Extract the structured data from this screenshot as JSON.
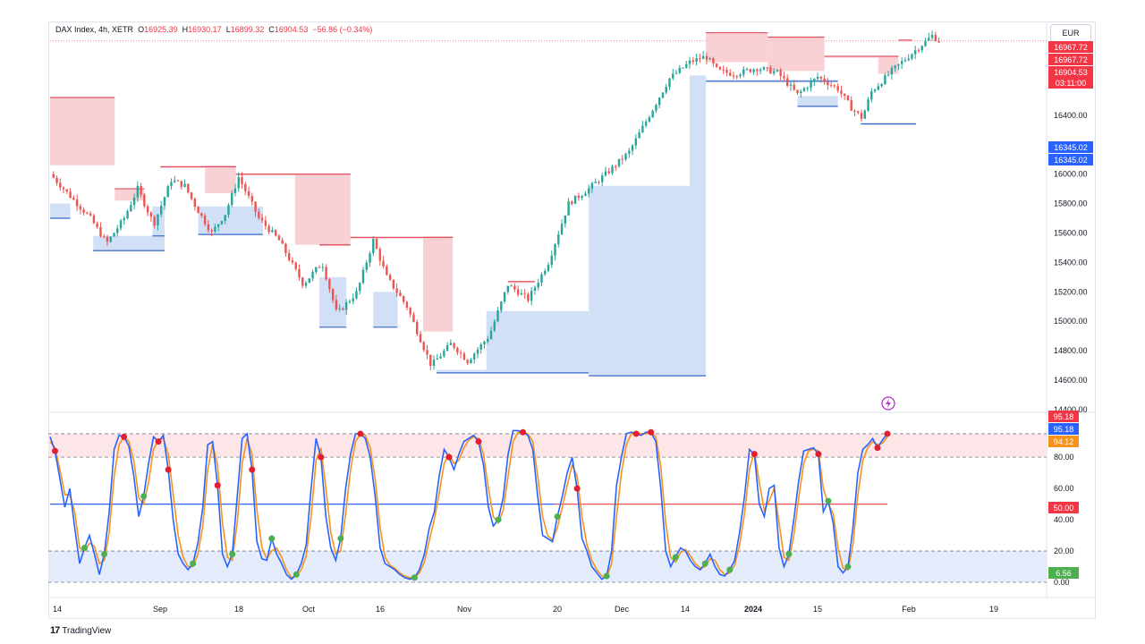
{
  "header": {
    "symbol": "DAX Index, 4h, XETR",
    "o_label": "O",
    "o_value": "16925.39",
    "h_label": "H",
    "h_value": "16930.17",
    "l_label": "L",
    "l_value": "16899.32",
    "c_label": "C",
    "c_value": "16904.53",
    "change": "−56.86 (−0.34%)"
  },
  "currency": "EUR",
  "footer": {
    "brand": "TradingView"
  },
  "colors": {
    "up": "#26a69a",
    "down": "#ef5350",
    "supply": "#f8c8cc",
    "demand": "#c9d9f6",
    "k_line": "#2962ff",
    "d_line": "#f7931a",
    "mid_line": "#2962ff",
    "mid_line_right": "#ef5350"
  },
  "chart_data": [
    {
      "type": "candlestick",
      "title": "DAX Index, 4h, XETR",
      "ylim": [
        14400,
        17000
      ],
      "y_ticks": [
        "16600.00",
        "16400.00",
        "16200.00",
        "16000.00",
        "15800.00",
        "15600.00",
        "15400.00",
        "15200.00",
        "15000.00",
        "14800.00",
        "14600.00",
        "14400.00"
      ],
      "x_ticks": [
        "14",
        "Sep",
        "18",
        "Oct",
        "16",
        "Nov",
        "20",
        "Dec",
        "14",
        "2024",
        "15",
        "Feb",
        "19"
      ],
      "price_labels": [
        {
          "value": "16967.72",
          "kind": "high"
        },
        {
          "value": "16967.72",
          "kind": "high"
        },
        {
          "value": "16904.53",
          "kind": "last"
        },
        {
          "value": "03:11:00",
          "kind": "countdown"
        },
        {
          "value": "16345.02",
          "kind": "support"
        },
        {
          "value": "16345.02",
          "kind": "support"
        }
      ],
      "close_path": [
        {
          "t": 0.0,
          "p": 16000
        },
        {
          "t": 1.5,
          "p": 15850
        },
        {
          "t": 3.0,
          "p": 15700
        },
        {
          "t": 4.2,
          "p": 15530
        },
        {
          "t": 5.5,
          "p": 15700
        },
        {
          "t": 6.5,
          "p": 15900
        },
        {
          "t": 7.7,
          "p": 15660
        },
        {
          "t": 9.0,
          "p": 15960
        },
        {
          "t": 10.0,
          "p": 15920
        },
        {
          "t": 10.8,
          "p": 15780
        },
        {
          "t": 12.0,
          "p": 15600
        },
        {
          "t": 13.0,
          "p": 15730
        },
        {
          "t": 14.0,
          "p": 15980
        },
        {
          "t": 15.5,
          "p": 15700
        },
        {
          "t": 17.0,
          "p": 15550
        },
        {
          "t": 18.8,
          "p": 15250
        },
        {
          "t": 20.2,
          "p": 15400
        },
        {
          "t": 21.3,
          "p": 15050
        },
        {
          "t": 22.8,
          "p": 15200
        },
        {
          "t": 24.0,
          "p": 15550
        },
        {
          "t": 25.0,
          "p": 15300
        },
        {
          "t": 26.5,
          "p": 15100
        },
        {
          "t": 28.3,
          "p": 14700
        },
        {
          "t": 29.8,
          "p": 14850
        },
        {
          "t": 31.0,
          "p": 14730
        },
        {
          "t": 32.6,
          "p": 14900
        },
        {
          "t": 34.0,
          "p": 15250
        },
        {
          "t": 35.5,
          "p": 15150
        },
        {
          "t": 37.0,
          "p": 15400
        },
        {
          "t": 38.5,
          "p": 15800
        },
        {
          "t": 40.0,
          "p": 15900
        },
        {
          "t": 41.5,
          "p": 16020
        },
        {
          "t": 43.0,
          "p": 16150
        },
        {
          "t": 44.5,
          "p": 16400
        },
        {
          "t": 46.0,
          "p": 16650
        },
        {
          "t": 47.5,
          "p": 16760
        },
        {
          "t": 48.7,
          "p": 16800
        },
        {
          "t": 49.6,
          "p": 16700
        },
        {
          "t": 50.8,
          "p": 16680
        },
        {
          "t": 52.5,
          "p": 16720
        },
        {
          "t": 54.0,
          "p": 16690
        },
        {
          "t": 55.5,
          "p": 16540
        },
        {
          "t": 57.0,
          "p": 16660
        },
        {
          "t": 58.5,
          "p": 16580
        },
        {
          "t": 59.5,
          "p": 16450
        },
        {
          "t": 60.3,
          "p": 16380
        },
        {
          "t": 61.0,
          "p": 16560
        },
        {
          "t": 62.5,
          "p": 16700
        },
        {
          "t": 64.0,
          "p": 16820
        },
        {
          "t": 65.5,
          "p": 16940
        },
        {
          "t": 66.0,
          "p": 16905
        }
      ],
      "supply_zones": [
        {
          "t1": 0.0,
          "t2": 4.8,
          "top": 16520,
          "bottom": 16060
        },
        {
          "t1": 4.8,
          "t2": 7.0,
          "top": 15900,
          "bottom": 15820
        },
        {
          "t1": 8.2,
          "t2": 13.8,
          "top": 16050,
          "bottom": 16040
        },
        {
          "t1": 11.5,
          "t2": 13.8,
          "top": 16050,
          "bottom": 15870
        },
        {
          "t1": 13.8,
          "t2": 22.3,
          "top": 16000,
          "bottom": 15990
        },
        {
          "t1": 18.2,
          "t2": 22.3,
          "top": 16000,
          "bottom": 15520
        },
        {
          "t1": 20.0,
          "t2": 22.3,
          "top": 15520,
          "bottom": 15510
        },
        {
          "t1": 22.3,
          "t2": 29.9,
          "top": 15570,
          "bottom": 15560
        },
        {
          "t1": 27.7,
          "t2": 29.9,
          "top": 15570,
          "bottom": 14930
        },
        {
          "t1": 34.0,
          "t2": 36.0,
          "top": 15270,
          "bottom": 15260
        },
        {
          "t1": 48.7,
          "t2": 53.3,
          "top": 16960,
          "bottom": 16760
        },
        {
          "t1": 53.3,
          "t2": 57.5,
          "top": 16930,
          "bottom": 16700
        },
        {
          "t1": 57.5,
          "t2": 63.0,
          "top": 16800,
          "bottom": 16790
        },
        {
          "t1": 61.5,
          "t2": 63.0,
          "top": 16800,
          "bottom": 16680
        },
        {
          "t1": 63.0,
          "t2": 64.0,
          "top": 16910,
          "bottom": 16900
        }
      ],
      "demand_zones": [
        {
          "t1": 0.0,
          "t2": 1.5,
          "top": 15800,
          "bottom": 15700
        },
        {
          "t1": 3.2,
          "t2": 8.5,
          "top": 15580,
          "bottom": 15480
        },
        {
          "t1": 7.6,
          "t2": 8.5,
          "top": 15780,
          "bottom": 15580
        },
        {
          "t1": 11.0,
          "t2": 15.8,
          "top": 15780,
          "bottom": 15590
        },
        {
          "t1": 20.0,
          "t2": 22.0,
          "top": 15300,
          "bottom": 14960
        },
        {
          "t1": 24.0,
          "t2": 25.8,
          "top": 15200,
          "bottom": 14960
        },
        {
          "t1": 28.7,
          "t2": 32.4,
          "top": 14670,
          "bottom": 14650
        },
        {
          "t1": 32.4,
          "t2": 40.0,
          "top": 15070,
          "bottom": 14650
        },
        {
          "t1": 40.0,
          "t2": 47.5,
          "top": 15920,
          "bottom": 14630
        },
        {
          "t1": 47.5,
          "t2": 48.7,
          "top": 16670,
          "bottom": 14630
        },
        {
          "t1": 48.7,
          "t2": 58.5,
          "top": 16640,
          "bottom": 16630
        },
        {
          "t1": 55.5,
          "t2": 58.5,
          "top": 16530,
          "bottom": 16460
        },
        {
          "t1": 60.2,
          "t2": 64.3,
          "top": 16350,
          "bottom": 16340
        }
      ]
    },
    {
      "type": "line",
      "title": "Stochastic",
      "ylim": [
        0,
        100
      ],
      "y_ticks": [
        "80.00",
        "60.00",
        "40.00",
        "20.00",
        "0.00"
      ],
      "overbought": 80,
      "oversold": 20,
      "midline": 50,
      "value_labels": [
        {
          "value": "95.18",
          "kind": "k-high"
        },
        {
          "value": "95.18",
          "kind": "k"
        },
        {
          "value": "94.12",
          "kind": "d"
        },
        {
          "value": "50.00",
          "kind": "mid"
        },
        {
          "value": "6.56",
          "kind": "low"
        }
      ],
      "series": [
        {
          "key": "k",
          "values": [
            93,
            84,
            66,
            48,
            60,
            35,
            12,
            22,
            30,
            18,
            5,
            18,
            45,
            85,
            94,
            93,
            87,
            68,
            42,
            55,
            76,
            93,
            90,
            94,
            72,
            40,
            18,
            12,
            8,
            12,
            25,
            48,
            88,
            90,
            62,
            18,
            10,
            18,
            55,
            92,
            95,
            72,
            26,
            15,
            14,
            28,
            18,
            12,
            5,
            2,
            5,
            12,
            24,
            60,
            92,
            80,
            42,
            22,
            14,
            28,
            60,
            82,
            95,
            95,
            92,
            80,
            55,
            22,
            12,
            10,
            8,
            5,
            3,
            2,
            3,
            8,
            18,
            35,
            45,
            68,
            85,
            80,
            72,
            82,
            90,
            92,
            94,
            90,
            75,
            48,
            36,
            40,
            54,
            82,
            97,
            97,
            96,
            94,
            85,
            55,
            30,
            28,
            26,
            42,
            55,
            70,
            80,
            60,
            28,
            20,
            10,
            6,
            2,
            4,
            20,
            62,
            80,
            95,
            96,
            95,
            94,
            96,
            96,
            90,
            60,
            20,
            10,
            16,
            22,
            20,
            14,
            10,
            8,
            12,
            18,
            10,
            5,
            4,
            8,
            14,
            32,
            55,
            85,
            82,
            50,
            42,
            60,
            62,
            22,
            10,
            18,
            40,
            65,
            84,
            85,
            86,
            82,
            45,
            52,
            38,
            10,
            6,
            10,
            35,
            70,
            85,
            88,
            92,
            86,
            91,
            95
          ]
        },
        {
          "key": "d",
          "values": [
            90,
            86,
            72,
            56,
            56,
            45,
            22,
            20,
            25,
            23,
            12,
            14,
            32,
            68,
            88,
            93,
            90,
            78,
            54,
            50,
            64,
            85,
            91,
            92,
            82,
            56,
            30,
            16,
            10,
            10,
            18,
            36,
            72,
            88,
            75,
            38,
            16,
            14,
            38,
            76,
            92,
            82,
            46,
            22,
            15,
            20,
            22,
            16,
            8,
            3,
            4,
            8,
            17,
            42,
            78,
            86,
            60,
            32,
            18,
            20,
            44,
            72,
            90,
            95,
            94,
            86,
            66,
            35,
            16,
            11,
            9,
            6,
            4,
            3,
            3,
            6,
            13,
            27,
            40,
            57,
            76,
            82,
            76,
            78,
            86,
            91,
            93,
            92,
            82,
            60,
            42,
            38,
            46,
            68,
            90,
            96,
            96,
            95,
            90,
            68,
            42,
            30,
            27,
            35,
            48,
            62,
            75,
            68,
            42,
            24,
            14,
            8,
            4,
            3,
            12,
            42,
            70,
            88,
            95,
            96,
            95,
            95,
            96,
            93,
            74,
            38,
            16,
            13,
            19,
            21,
            17,
            12,
            9,
            10,
            15,
            14,
            8,
            5,
            6,
            11,
            24,
            44,
            72,
            84,
            64,
            46,
            52,
            60,
            38,
            16,
            14,
            30,
            54,
            76,
            84,
            85,
            84,
            60,
            50,
            44,
            22,
            9,
            8,
            24,
            56,
            78,
            86,
            90,
            88,
            89,
            93
          ]
        }
      ]
    }
  ]
}
